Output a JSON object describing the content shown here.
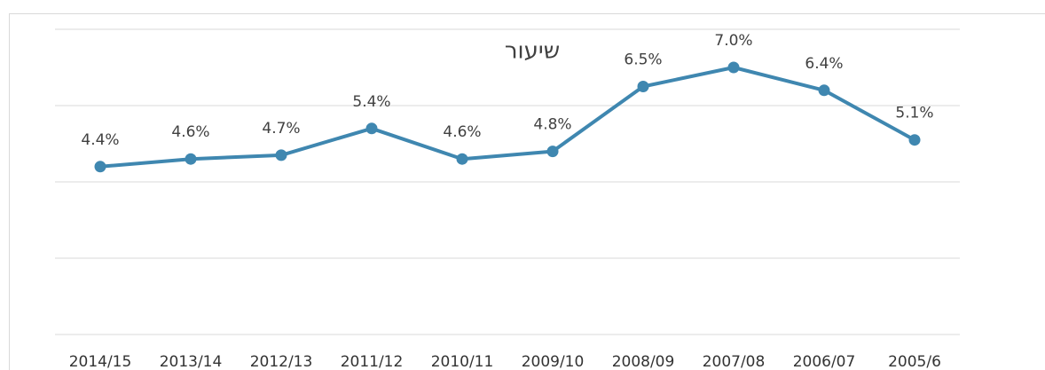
{
  "chart_data": {
    "type": "line",
    "title": "שיעור",
    "categories": [
      "2014/15",
      "2013/14",
      "2012/13",
      "2011/12",
      "2010/11",
      "2009/10",
      "2008/09",
      "2007/08",
      "2006/07",
      "2005/6"
    ],
    "series": [
      {
        "color": "#3f87b0",
        "values": [
          4.4,
          4.6,
          4.7,
          5.4,
          4.6,
          4.8,
          6.5,
          7.0,
          6.4,
          5.1
        ],
        "value_labels": [
          "4.4%",
          "4.6%",
          "4.7%",
          "5.4%",
          "4.6%",
          "4.8%",
          "6.5%",
          "7.0%",
          "6.4%",
          "5.1%"
        ]
      }
    ],
    "ylim": [
      0,
      8
    ],
    "yticks": [
      0,
      2,
      4,
      6,
      8
    ],
    "grid": true
  }
}
